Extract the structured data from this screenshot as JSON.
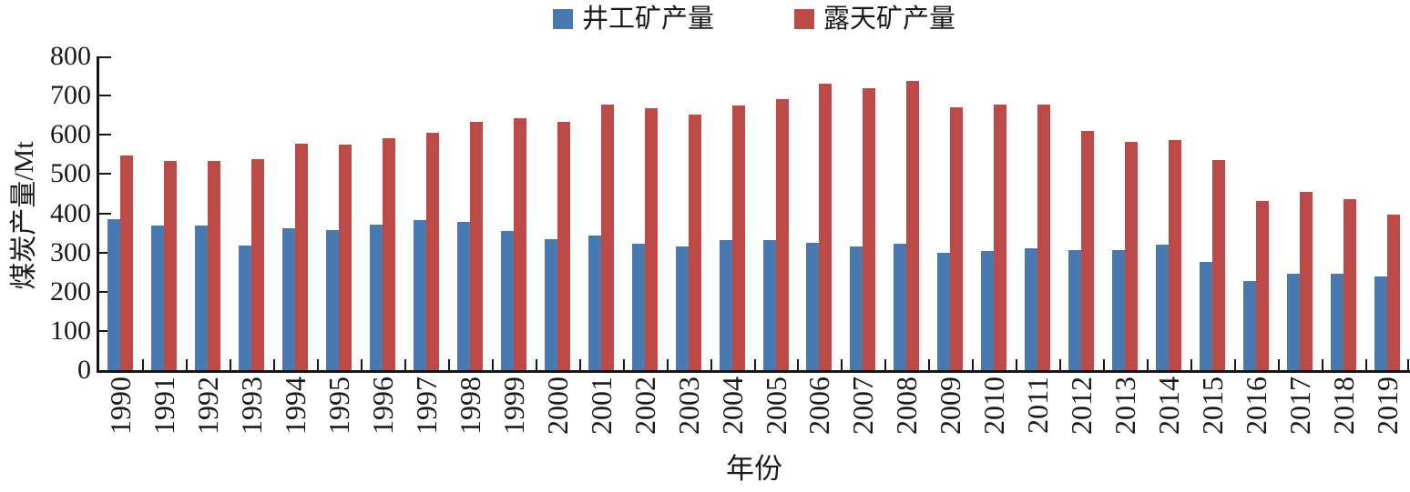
{
  "legend": [
    {
      "label": "井工矿产量",
      "color": "#4A78B0"
    },
    {
      "label": "露天矿产量",
      "color": "#BC4B47"
    }
  ],
  "axes": {
    "x_title": "年份",
    "y_title": "煤炭产量/Mt"
  },
  "chart_data": {
    "type": "bar",
    "title": "",
    "xlabel": "年份",
    "ylabel": "煤炭产量/Mt",
    "ylim": [
      0,
      800
    ],
    "ytick_step": 100,
    "grid": false,
    "legend_position": "top-center",
    "axis_color": "#161616",
    "categories": [
      "1990",
      "1991",
      "1992",
      "1993",
      "1994",
      "1995",
      "1996",
      "1997",
      "1998",
      "1999",
      "2000",
      "2001",
      "2002",
      "2003",
      "2004",
      "2005",
      "2006",
      "2007",
      "2008",
      "2009",
      "2010",
      "2011",
      "2012",
      "2013",
      "2014",
      "2015",
      "2016",
      "2017",
      "2018",
      "2019"
    ],
    "series": [
      {
        "name": "井工矿产量",
        "color": "#4A78B0",
        "values": [
          385,
          368,
          368,
          318,
          362,
          358,
          370,
          382,
          377,
          355,
          335,
          343,
          323,
          315,
          331,
          331,
          324,
          316,
          323,
          300,
          303,
          310,
          307,
          306,
          321,
          276,
          227,
          246,
          246,
          239
        ]
      },
      {
        "name": "露天矿产量",
        "color": "#BC4B47",
        "values": [
          547,
          534,
          534,
          538,
          577,
          575,
          591,
          605,
          632,
          643,
          632,
          678,
          668,
          652,
          674,
          690,
          730,
          719,
          738,
          671,
          677,
          678,
          610,
          582,
          586,
          535,
          431,
          454,
          435,
          396
        ]
      }
    ]
  }
}
